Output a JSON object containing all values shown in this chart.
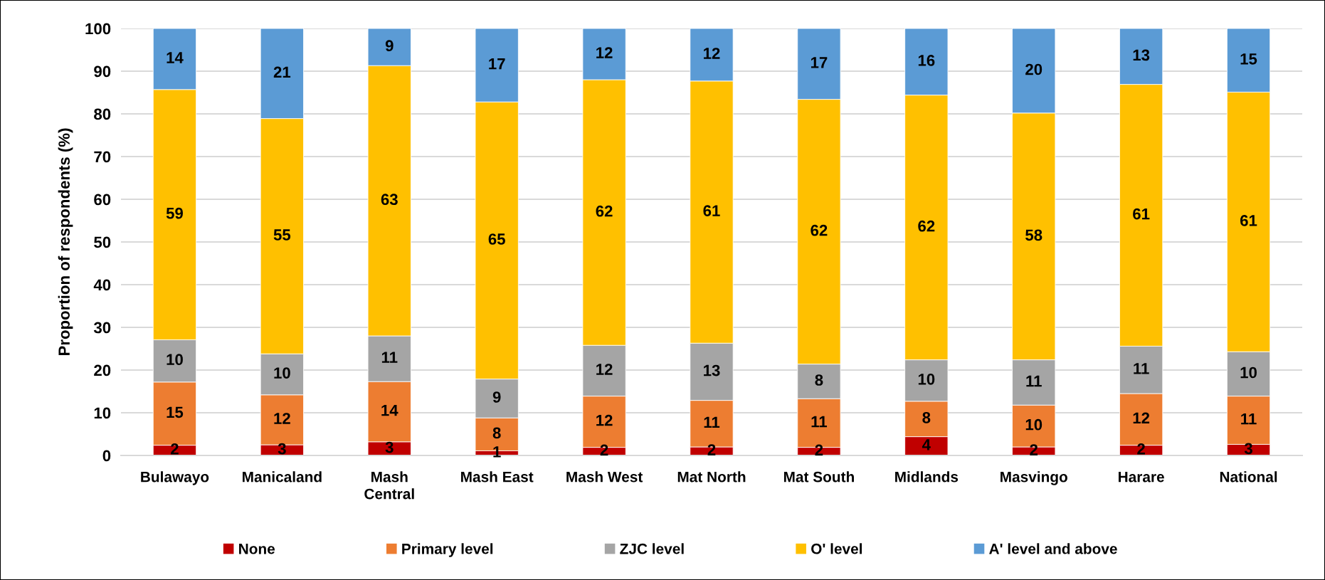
{
  "chart_data": {
    "type": "bar",
    "stacked": true,
    "ylabel": "Proportion of respondents (%)",
    "categories": [
      "Bulawayo",
      "Manicaland",
      "Mash Central",
      "Mash East",
      "Mash West",
      "Mat North",
      "Mat South",
      "Midlands",
      "Masvingo",
      "Harare",
      "National"
    ],
    "series": [
      {
        "name": "None",
        "color": "#c00000",
        "values": [
          2.4,
          2.5,
          3.2,
          1.1,
          1.9,
          2.0,
          1.9,
          4.4,
          2.0,
          2.4,
          2.6
        ],
        "value_labels": [
          "2",
          "3",
          "3",
          "1",
          "2",
          "2",
          "2",
          "4",
          "2",
          "2",
          "3"
        ]
      },
      {
        "name": "Primary level",
        "color": "#ed7d31",
        "values": [
          14.8,
          11.7,
          14.1,
          7.7,
          12.0,
          10.9,
          11.4,
          8.3,
          9.8,
          12.1,
          11.3
        ],
        "value_labels": [
          "15",
          "12",
          "14",
          "8",
          "12",
          "11",
          "11",
          "8",
          "10",
          "12",
          "11"
        ]
      },
      {
        "name": "ZJC level",
        "color": "#a5a5a5",
        "values": [
          9.9,
          9.6,
          10.7,
          9.1,
          11.9,
          13.4,
          8.1,
          9.7,
          10.6,
          11.1,
          10.4
        ],
        "value_labels": [
          "10",
          "10",
          "11",
          "9",
          "12",
          "13",
          "8",
          "10",
          "11",
          "11",
          "10"
        ]
      },
      {
        "name": "O' level",
        "color": "#ffc000",
        "values": [
          58.6,
          55.1,
          63.3,
          64.9,
          62.2,
          61.4,
          62.0,
          62.0,
          57.8,
          61.3,
          60.8
        ],
        "value_labels": [
          "59",
          "55",
          "63",
          "65",
          "62",
          "61",
          "62",
          "62",
          "58",
          "61",
          "61"
        ]
      },
      {
        "name": "A' level and above",
        "color": "#5b9bd5",
        "values": [
          14.3,
          21.1,
          8.7,
          17.2,
          12.0,
          12.3,
          16.6,
          15.6,
          19.8,
          13.1,
          14.9
        ],
        "value_labels": [
          "14",
          "21",
          "9",
          "17",
          "12",
          "12",
          "17",
          "16",
          "20",
          "13",
          "15"
        ]
      }
    ],
    "ylim": [
      0,
      100
    ],
    "yticks": [
      0,
      10,
      20,
      30,
      40,
      50,
      60,
      70,
      80,
      90,
      100
    ],
    "grid": "y",
    "legend": "bottom"
  }
}
